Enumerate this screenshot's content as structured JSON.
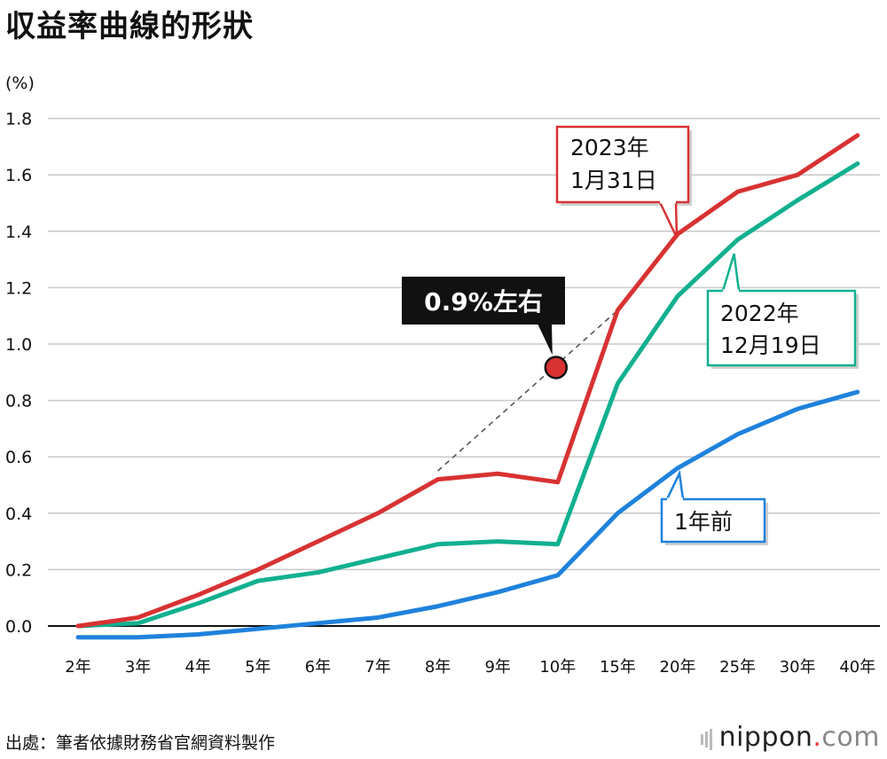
{
  "title": "収益率曲線的形狀",
  "unit_label": "(%)",
  "source": "出處：筆者依據財務省官網資料製作",
  "brand": {
    "name": "nippon",
    "dot": ".",
    "suffix": "com"
  },
  "colors": {
    "red": "#d83232",
    "green": "#12b08f",
    "blue": "#1f82dc",
    "grid": "#c8c8c8"
  },
  "chart_data": {
    "type": "line",
    "title": "収益率曲線的形狀",
    "ylabel": "(%)",
    "ylim": [
      0.0,
      1.8
    ],
    "yticks": [
      "0.0",
      "0.2",
      "0.4",
      "0.6",
      "0.8",
      "1.0",
      "1.2",
      "1.4",
      "1.6",
      "1.8"
    ],
    "categories": [
      "2年",
      "3年",
      "4年",
      "5年",
      "6年",
      "7年",
      "8年",
      "9年",
      "10年",
      "15年",
      "20年",
      "25年",
      "30年",
      "40年"
    ],
    "series": [
      {
        "name": "2023年1月31日",
        "label_line1": "2023年",
        "label_line2": "1月31日",
        "color": "#d83232",
        "values": [
          0.0,
          0.03,
          0.11,
          0.2,
          0.3,
          0.4,
          0.52,
          0.54,
          0.51,
          1.12,
          1.39,
          1.54,
          1.6,
          1.74
        ]
      },
      {
        "name": "2022年12月19日",
        "label_line1": "2022年",
        "label_line2": "12月19日",
        "color": "#12b08f",
        "values": [
          0.0,
          0.01,
          0.08,
          0.16,
          0.19,
          0.24,
          0.29,
          0.3,
          0.29,
          0.86,
          1.17,
          1.37,
          1.51,
          1.64
        ]
      },
      {
        "name": "1年前",
        "label_line1": "1年前",
        "color": "#1f82dc",
        "values": [
          -0.04,
          -0.04,
          -0.03,
          -0.01,
          0.01,
          0.03,
          0.07,
          0.12,
          0.18,
          0.4,
          0.56,
          0.68,
          0.77,
          0.83
        ]
      }
    ],
    "annotation": {
      "label": "0.9%左右",
      "category": "10年",
      "value": 0.92,
      "dashed_from": {
        "category": "8年",
        "value": 0.55
      },
      "dashed_to": {
        "category": "15年",
        "value": 1.12
      }
    }
  }
}
